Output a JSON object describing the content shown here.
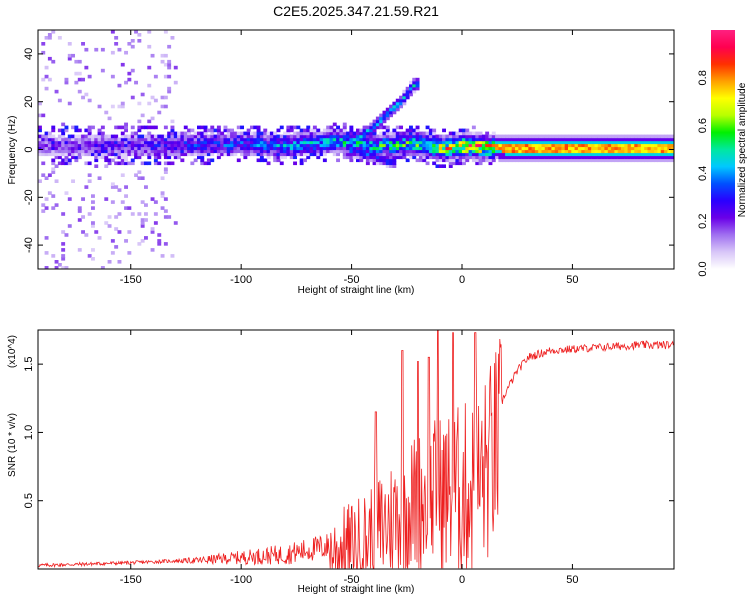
{
  "title": "C2E5.2025.347.21.59.R21",
  "chart_data": [
    {
      "type": "heatmap",
      "name": "spectrogram",
      "xlabel": "Height of straight line (km)",
      "ylabel": "Frequency (Hz)",
      "xlim": [
        -192,
        96
      ],
      "ylim": [
        -50,
        50
      ],
      "xticks": [
        -150,
        -100,
        -50,
        0,
        50
      ],
      "yticks": [
        -40,
        -20,
        0,
        20,
        40
      ],
      "colorbar": {
        "label": "Normalized spectral amplitude",
        "range": [
          0,
          1
        ],
        "ticks": [
          0.0,
          0.2,
          0.4,
          0.6,
          0.8
        ],
        "colormap": [
          "#ffffff",
          "#d8c6f8",
          "#a070f0",
          "#6a00e8",
          "#2a00ff",
          "#0050ff",
          "#00c8ff",
          "#00e8a0",
          "#00f000",
          "#b8ff00",
          "#ffff00",
          "#ffa000",
          "#ff3000",
          "#ff0050",
          "#ff2080"
        ]
      },
      "band_center_profile": {
        "x": [
          -192,
          -150,
          -100,
          -80,
          -60,
          -40,
          -20,
          -10,
          0,
          20,
          50,
          96
        ],
        "center_hz": [
          1,
          1,
          2,
          1,
          3,
          1,
          2,
          0,
          1,
          0,
          0,
          0
        ],
        "amplitude": [
          0.18,
          0.25,
          0.35,
          0.4,
          0.45,
          0.5,
          0.55,
          0.7,
          0.85,
          0.75,
          0.7,
          0.7
        ]
      },
      "diagonal_feature": {
        "x": [
          -50,
          -42,
          -35,
          -28,
          -22
        ],
        "center_hz": [
          3,
          8,
          14,
          20,
          27
        ]
      }
    },
    {
      "type": "line",
      "name": "snr",
      "xlabel": "Height of straight line (km)",
      "ylabel": "SNR (10 * v/v)",
      "multiplier_label": "(x10^4)",
      "xlim": [
        -192,
        96
      ],
      "ylim": [
        0,
        1.75
      ],
      "xticks": [
        -150,
        -100,
        -50,
        0,
        50
      ],
      "yticks": [
        0.5,
        1.0,
        1.5
      ],
      "color": "#ee2020",
      "trend": {
        "x": [
          -192,
          -150,
          -120,
          -100,
          -80,
          -60,
          -45,
          -35,
          -25,
          -15,
          -5,
          5,
          10,
          15,
          20,
          25,
          30,
          40,
          60,
          80,
          96
        ],
        "y": [
          0.03,
          0.05,
          0.07,
          0.1,
          0.13,
          0.2,
          0.3,
          0.45,
          0.6,
          0.7,
          0.75,
          0.78,
          0.9,
          1.1,
          1.3,
          1.45,
          1.55,
          1.6,
          1.62,
          1.64,
          1.64
        ]
      },
      "peaks": [
        {
          "x": -39,
          "y": 1.15
        },
        {
          "x": -27,
          "y": 1.6
        },
        {
          "x": -20,
          "y": 1.52
        },
        {
          "x": -15,
          "y": 1.55
        },
        {
          "x": -11,
          "y": 1.76
        },
        {
          "x": -4,
          "y": 1.73
        },
        {
          "x": 6,
          "y": 1.73
        }
      ]
    }
  ]
}
